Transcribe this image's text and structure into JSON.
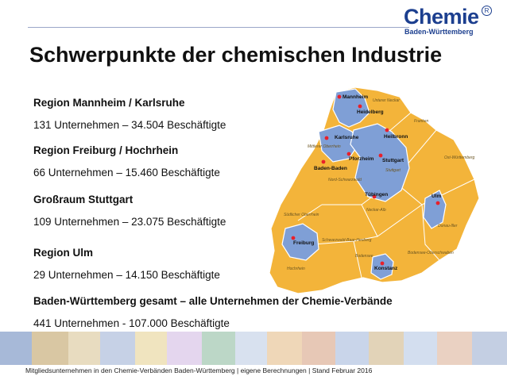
{
  "logo": {
    "word": "Chemie",
    "subtitle": "Baden-Württemberg",
    "reg": "R"
  },
  "title": "Schwerpunkte der chemischen Industrie",
  "regions": [
    {
      "name": "Region Mannheim / Karlsruhe",
      "stats": "131 Unternehmen – 34.504 Beschäftigte"
    },
    {
      "name": "Region Freiburg / Hochrhein",
      "stats": "66 Unternehmen – 15.460 Beschäftigte"
    },
    {
      "name": "Großraum Stuttgart",
      "stats": "109 Unternehmen – 23.075 Beschäftigte"
    },
    {
      "name": "Region Ulm",
      "stats": "29 Unternehmen – 14.150 Beschäftigte"
    }
  ],
  "total": {
    "name": "Baden-Württemberg gesamt – alle Unternehmen der Chemie-Verbände",
    "stats": "441 Unternehmen  - 107.000 Beschäftigte"
  },
  "map": {
    "cities": [
      "Mannheim",
      "Heidelberg",
      "Karlsruhe",
      "Heilbronn",
      "Pforzheim",
      "Stuttgart",
      "Baden-Baden",
      "Tübingen",
      "Ulm",
      "Freiburg",
      "Konstanz"
    ],
    "districts": [
      "Unterer Neckar",
      "Franken",
      "Mittlerer Oberrhein",
      "Ost-Württemberg",
      "Stuttgart",
      "Nord-Schwarzwald",
      "Neckar-Alb",
      "Donau-Iller",
      "Südlicher Oberrhein",
      "Schwarzwald-Baar-Heuberg",
      "Bodensee-Oberschwaben",
      "Hochrhein",
      "Bodensee"
    ],
    "colors": {
      "highlight": "#7f9fd6",
      "land": "#f3b43a",
      "border": "#ffffff",
      "marker": "#e8202a"
    }
  },
  "footer": "Mitgliedsunternehmen in den Chemie-Verbänden Baden-Württemberg | eigene Berechnungen | Stand Februar 2016"
}
